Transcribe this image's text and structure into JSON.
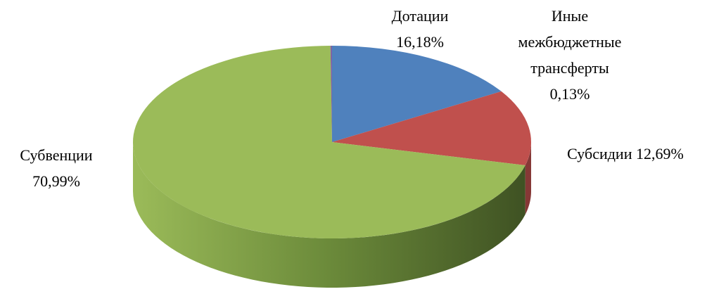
{
  "chart_data": {
    "type": "pie3d",
    "categories": [
      "Дотации",
      "Субсидии",
      "Субвенции",
      "Иные межбюджетные трансферты"
    ],
    "values": [
      16.18,
      12.69,
      70.99,
      0.13
    ],
    "value_labels": [
      "16,18%",
      "12,69%",
      "70,99%",
      "0,13%"
    ],
    "colors": [
      "#4f81bd",
      "#c0504d",
      "#9bbb59",
      "#8064a2"
    ]
  }
}
